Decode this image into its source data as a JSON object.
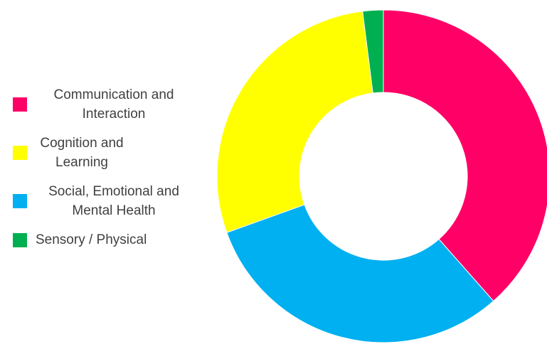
{
  "chart_data": {
    "type": "pie",
    "donut": true,
    "title": "",
    "categories": [
      "Communication and Interaction",
      "Cognition and Learning",
      "Social, Emotional and Mental Health",
      "Sensory / Physical"
    ],
    "legend": {
      "placement": "left",
      "entries": [
        {
          "label_line1": "Communication and",
          "label_line2": "Interaction",
          "color": "#ff0066"
        },
        {
          "label_line1": "Cognition and",
          "label_line2": "Learning",
          "color": "#ffff00"
        },
        {
          "label_line1": "Social, Emotional and",
          "label_line2": "Mental Health",
          "color": "#00b0f0"
        },
        {
          "label_line1": "Sensory / Physical",
          "label_line2": "",
          "color": "#00b050"
        }
      ]
    },
    "series": [
      {
        "values": [
          38.5,
          31,
          28.5,
          2
        ],
        "colors": [
          "#ff0066",
          "#00b0f0",
          "#ffff00",
          "#00b050"
        ],
        "order": [
          "Communication and Interaction",
          "Social, Emotional and Mental Health",
          "Cognition and Learning",
          "Sensory / Physical"
        ]
      }
    ]
  }
}
